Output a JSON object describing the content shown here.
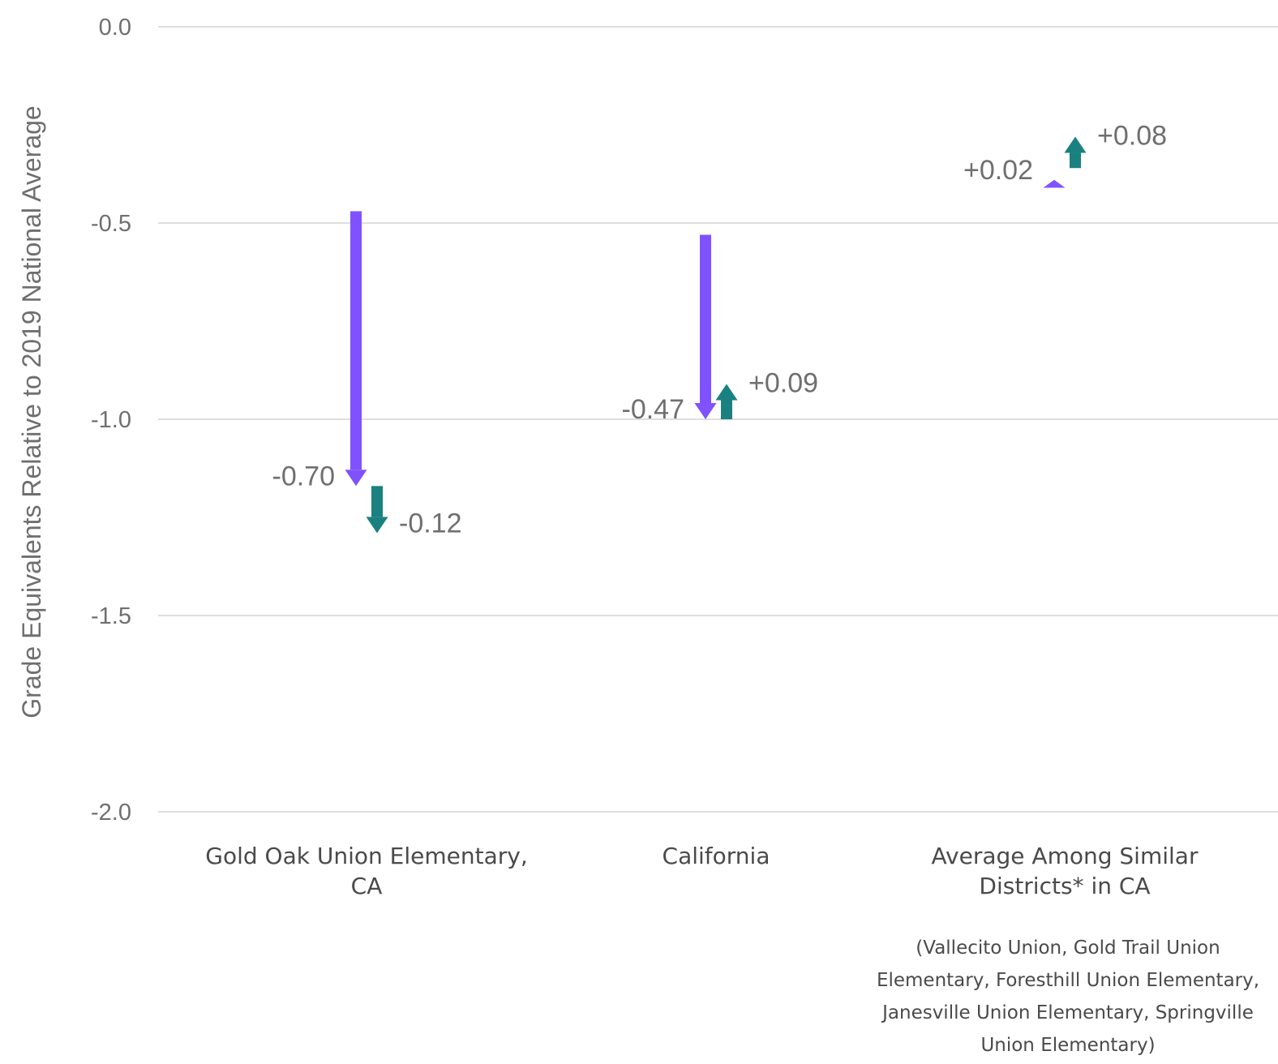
{
  "chart_data": {
    "type": "arrow",
    "ylabel": "Grade Equivalents Relative to 2019 National Average",
    "ylim": [
      -2.0,
      0.0
    ],
    "yticks": [
      0.0,
      -0.5,
      -1.0,
      -1.5,
      -2.0
    ],
    "ytick_labels": [
      "0.0",
      "-0.5",
      "-1.0",
      "-1.5",
      "-2.0"
    ],
    "grid": true,
    "colors": {
      "first_change": "#8052ff",
      "second_change": "#1b8080"
    },
    "categories": [
      {
        "label_lines": [
          "Gold Oak Union Elementary,",
          "CA"
        ],
        "note_lines": [],
        "first_change": {
          "start": -0.47,
          "end": -1.17,
          "label": "-0.70"
        },
        "second_change": {
          "start": -1.17,
          "end": -1.29,
          "label": "-0.12"
        }
      },
      {
        "label_lines": [
          "California"
        ],
        "note_lines": [],
        "first_change": {
          "start": -0.53,
          "end": -1.0,
          "label": "-0.47"
        },
        "second_change": {
          "start": -1.0,
          "end": -0.91,
          "label": "+0.09"
        }
      },
      {
        "label_lines": [
          "Average Among Similar",
          "Districts* in CA"
        ],
        "note_lines": [
          "(Vallecito Union, Gold Trail Union",
          "Elementary, Foresthill Union Elementary,",
          "Janesville Union Elementary, Springville",
          "Union Elementary)"
        ],
        "first_change": {
          "start": -0.41,
          "end": -0.39,
          "label": "+0.02"
        },
        "second_change": {
          "start": -0.36,
          "end": -0.28,
          "label": "+0.08"
        }
      }
    ]
  }
}
